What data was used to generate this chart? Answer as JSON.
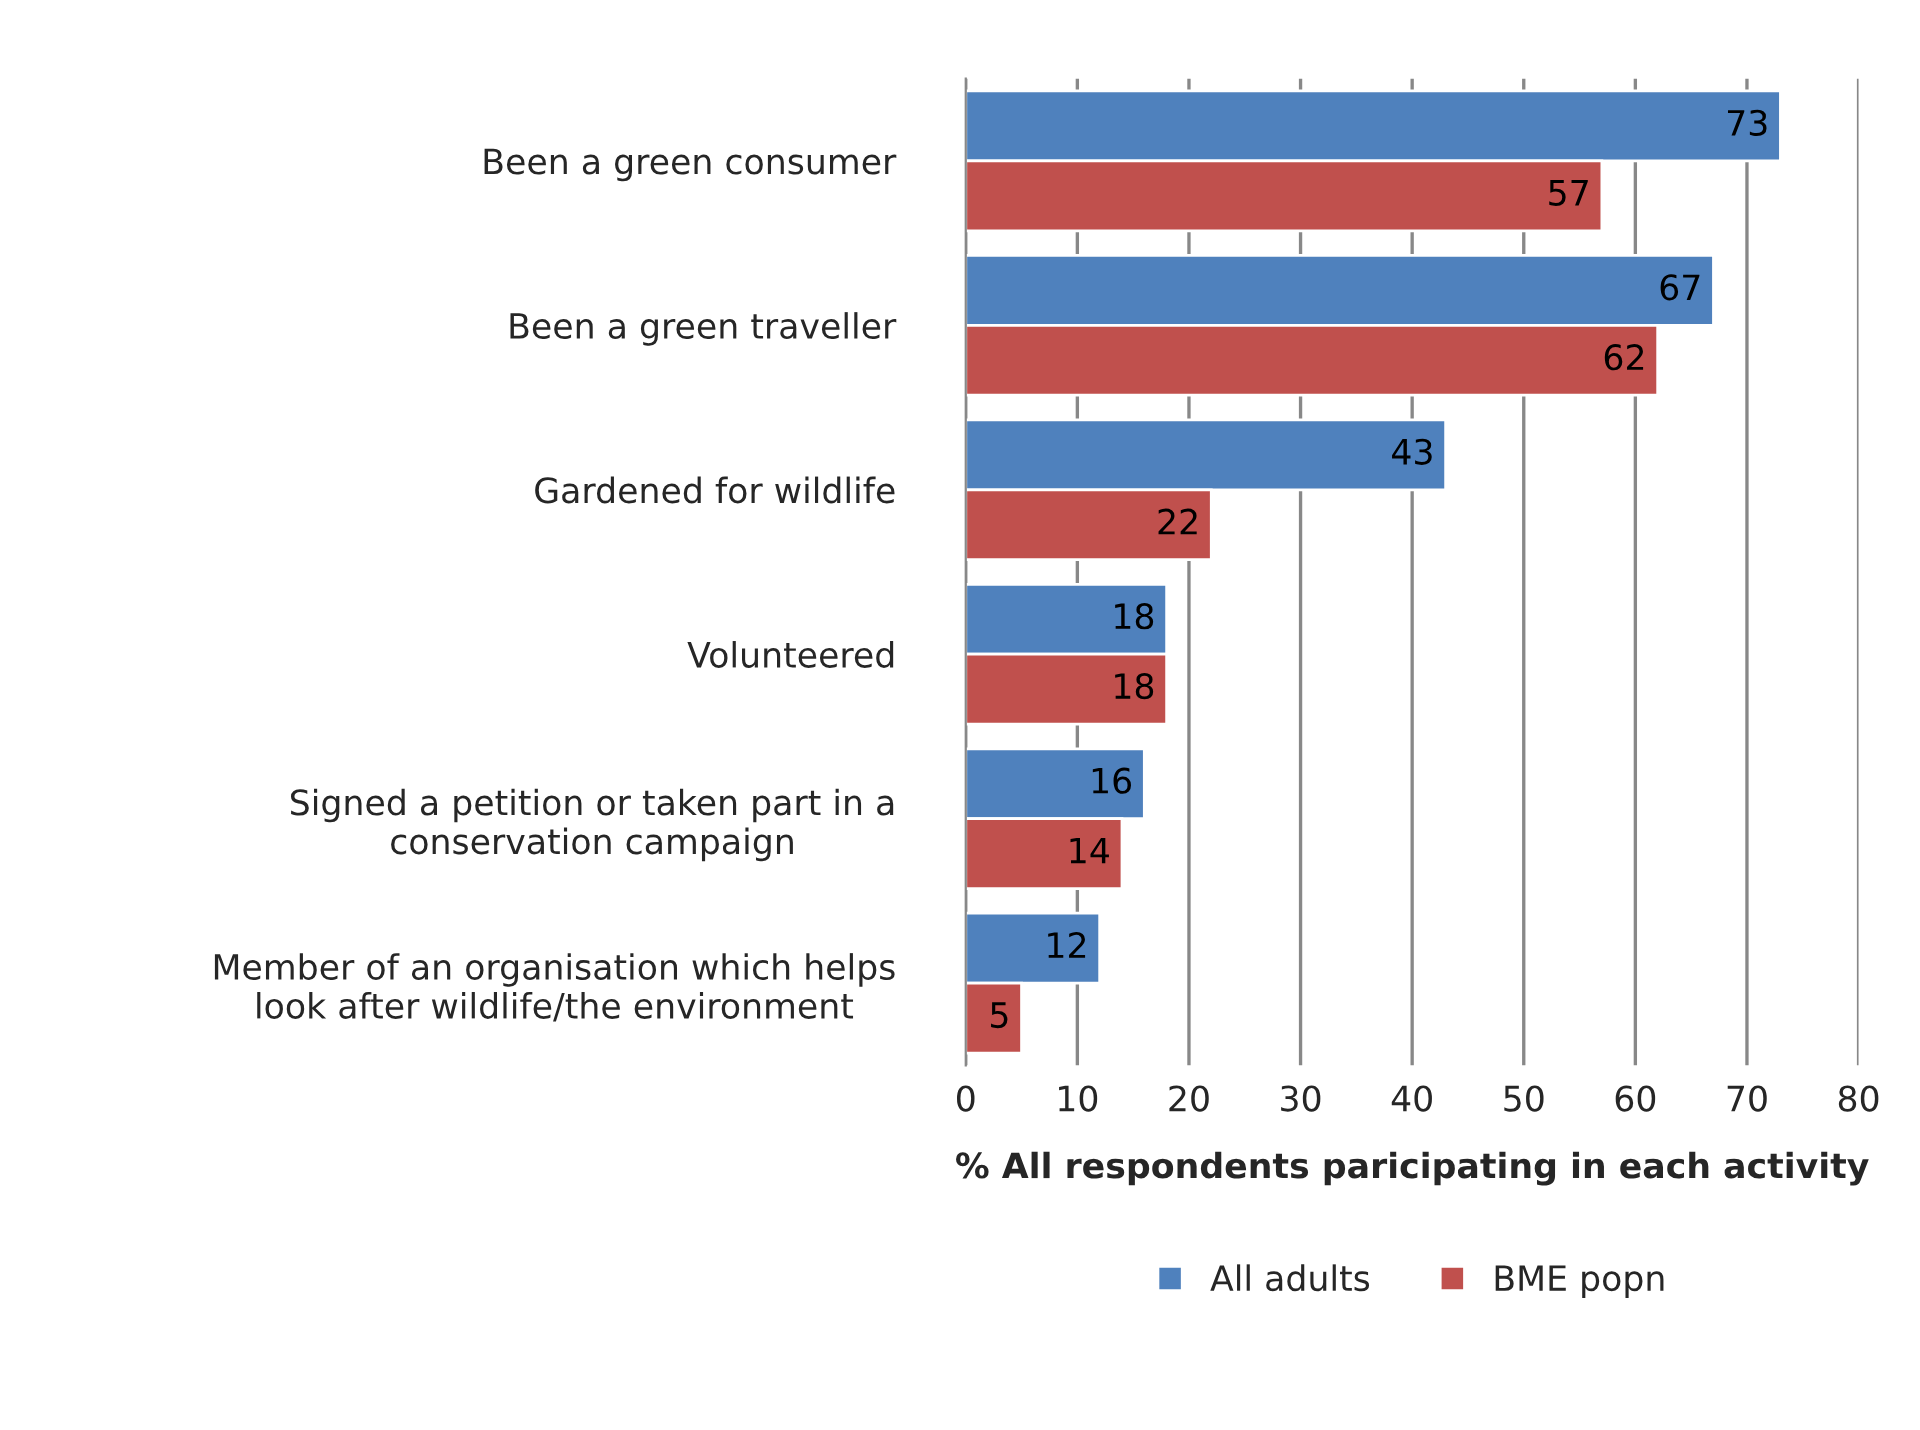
{
  "chart_data": {
    "type": "bar",
    "orientation": "horizontal",
    "categories": [
      "Been a green consumer",
      "Been a green traveller",
      "Gardened for wildlife",
      "Volunteered",
      "Signed a petition or taken part in a\nconservation campaign",
      "Member of an organisation which helps\nlook after wildlife/the environment"
    ],
    "series": [
      {
        "name": "All adults",
        "color": "#4f81bd",
        "values": [
          73,
          67,
          43,
          18,
          16,
          12
        ]
      },
      {
        "name": "BME popn",
        "color": "#c0504d",
        "values": [
          57,
          62,
          22,
          18,
          14,
          5
        ]
      }
    ],
    "xlabel": "% All respondents paricipating in each activity",
    "xlim": [
      0,
      80
    ],
    "xticks": [
      0,
      10,
      20,
      30,
      40,
      50,
      60,
      70,
      80
    ],
    "grid": "x",
    "legend": "bottom",
    "data_labels": true
  }
}
